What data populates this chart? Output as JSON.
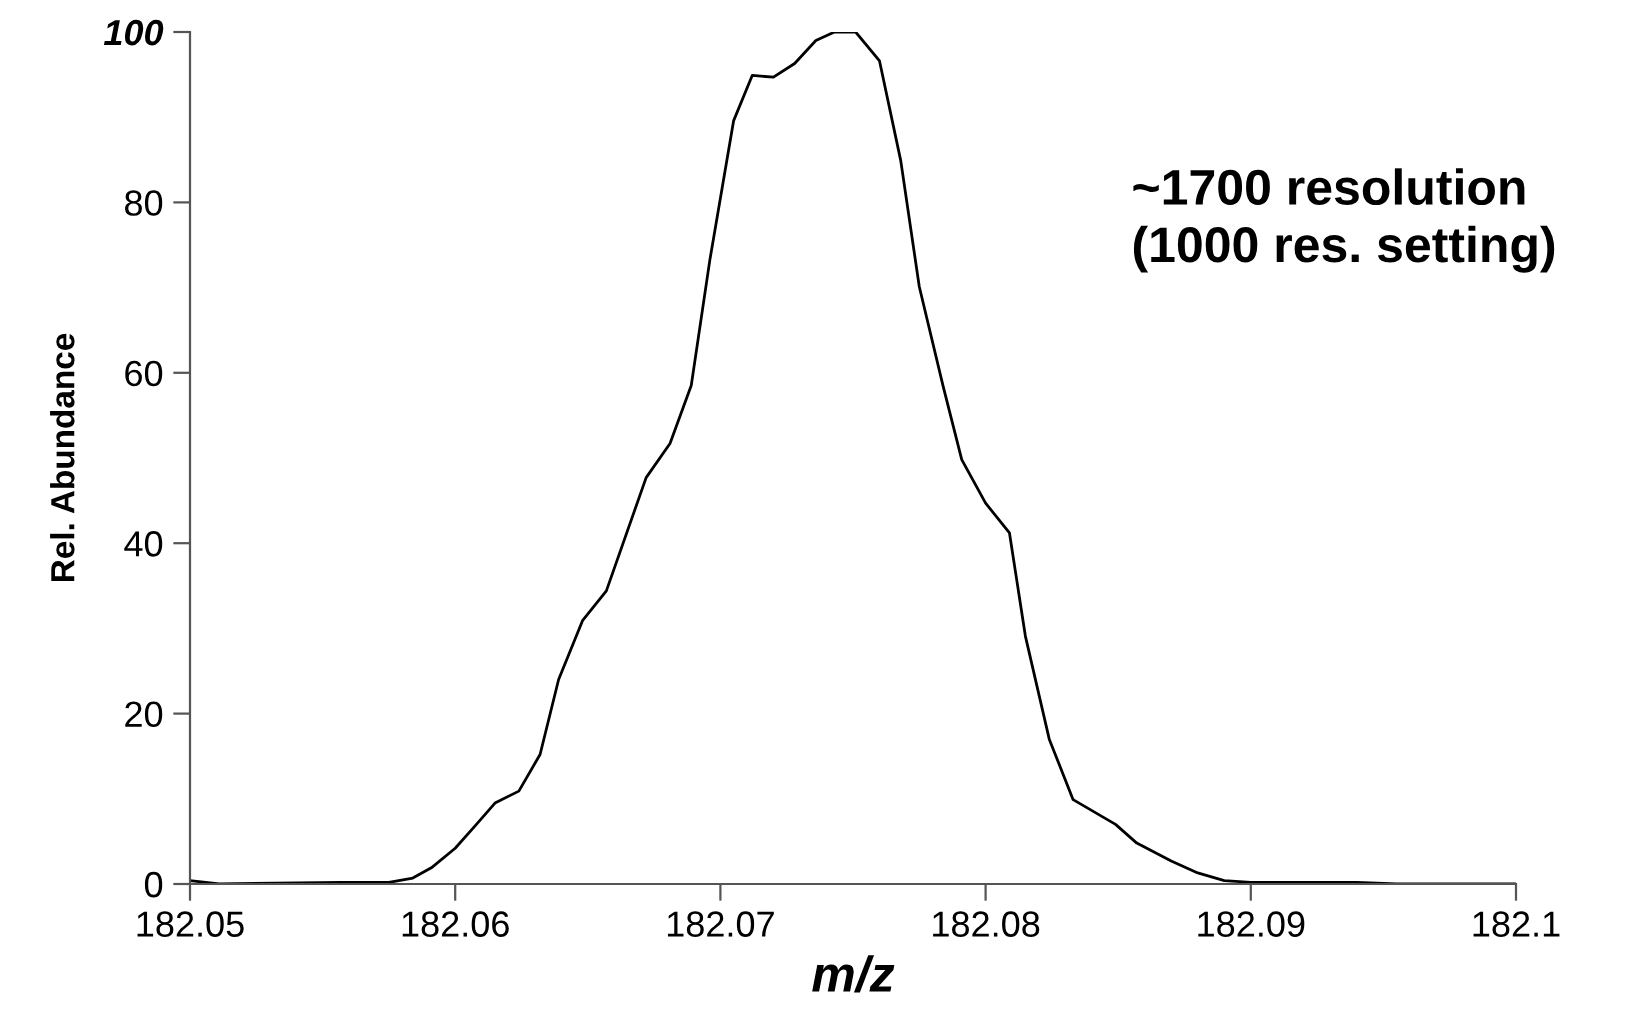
{
  "chart_data": {
    "type": "line",
    "xlabel": "m/z",
    "ylabel": "Rel. Abundance",
    "annotations": [
      "~1700 resolution\n(1000 res. setting)"
    ],
    "xlim": [
      182.05,
      182.1
    ],
    "xticks": [
      182.05,
      182.06,
      182.07,
      182.08,
      182.09,
      182.1
    ],
    "ylim": [
      0,
      100
    ],
    "yticks": [
      0,
      20,
      40,
      60,
      80,
      100
    ],
    "grid": false,
    "marker": "none",
    "line_style": "solid",
    "series": [
      {
        "color": "#000000",
        "x": [
          182.05,
          182.0511,
          182.0557,
          182.0575,
          182.0584,
          182.0591,
          182.06,
          182.0608,
          182.0615,
          182.0624,
          182.0632,
          182.0639,
          182.0648,
          182.0657,
          182.0672,
          182.0681,
          182.0689,
          182.0696,
          182.0705,
          182.0712,
          182.072,
          182.0728,
          182.0736,
          182.0743,
          182.0751,
          182.076,
          182.0768,
          182.0775,
          182.0784,
          182.0791,
          182.08,
          182.0809,
          182.0815,
          182.0824,
          182.0833,
          182.0849,
          182.0857,
          182.087,
          182.088,
          182.089,
          182.09,
          182.094,
          182.0955,
          182.1
        ],
        "values": [
          0.4,
          0,
          0.2,
          0.2,
          0.7,
          1.9,
          4.2,
          7.0,
          9.5,
          10.9,
          15.2,
          24.0,
          30.9,
          34.4,
          47.7,
          51.7,
          58.5,
          73.2,
          89.6,
          94.9,
          94.7,
          96.3,
          99.0,
          100,
          100,
          96.6,
          84.9,
          70.1,
          58.4,
          49.8,
          44.7,
          41.2,
          29.1,
          17.0,
          9.9,
          7.0,
          4.8,
          2.7,
          1.3,
          0.4,
          0.2,
          0.2,
          0,
          0
        ]
      }
    ]
  }
}
